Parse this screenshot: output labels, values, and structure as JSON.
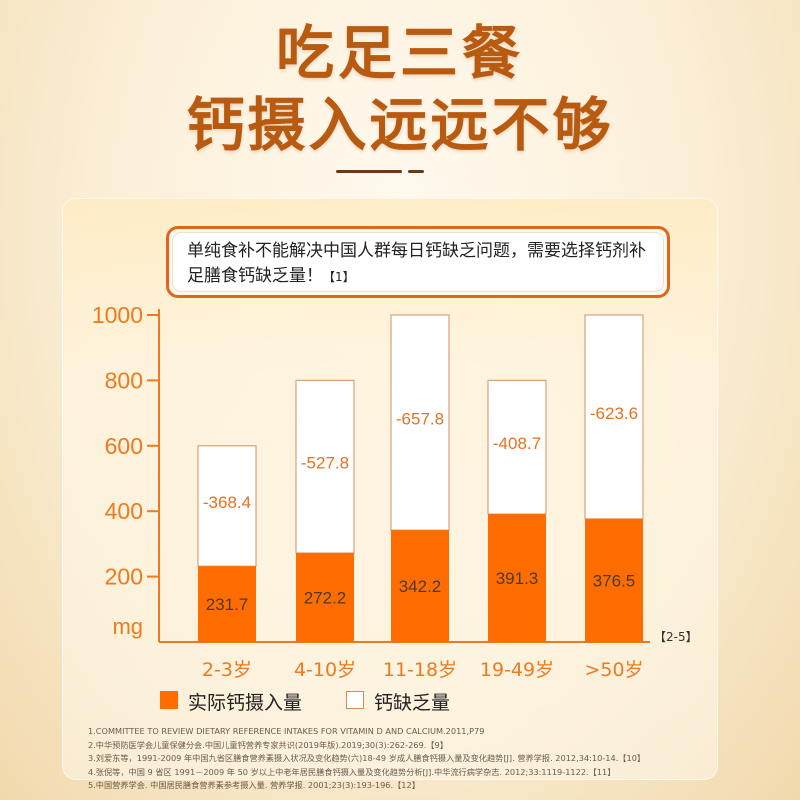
{
  "title": {
    "line1": "吃足三餐",
    "line2": "钙摄入远远不够"
  },
  "note": {
    "text": "单纯食补不能解决中国人群每日钙缺乏问题，需要选择钙剂补足膳食钙缺乏量！",
    "ref": "【1】"
  },
  "chart_data": {
    "type": "bar",
    "stacked": true,
    "categories": [
      "2-3岁",
      "4-10岁",
      "11-18岁",
      "19-49岁",
      ">50岁"
    ],
    "series": [
      {
        "name": "实际钙摄入量",
        "values": [
          231.7,
          272.2,
          342.2,
          391.3,
          376.5
        ],
        "labels": [
          "231.7",
          "272.2",
          "342.2",
          "391.3",
          "376.5"
        ],
        "color": "#ff6d00"
      },
      {
        "name": "钙缺乏量",
        "values": [
          368.4,
          527.8,
          657.8,
          408.7,
          623.6
        ],
        "labels": [
          "-368.4",
          "-527.8",
          "-657.8",
          "-408.7",
          "-623.6"
        ],
        "color": "#ffffff"
      }
    ],
    "ylim": [
      0,
      1000
    ],
    "yticks": [
      "1000",
      "800",
      "600",
      "400",
      "200"
    ],
    "yunit": "mg",
    "x_ref": "【2-5】",
    "axis_color": "#ef7a1e",
    "legend_position": "bottom-left"
  },
  "references": [
    "1.COMMITTEE TO REVIEW DIETARY REFERENCE INTAKES FOR VITAMIN D AND CALCIUM.2011,P79",
    "2.中华预防医学会儿童保健分会.中国儿童钙营养专家共识(2019年版).2019;30(3):262-269.【9】",
    "3.刘爱东等，1991-2009 年中国九省区膳食营养素摄入状况及变化趋势(六)18-49 岁成人膳食钙摄入量及变化趋势[J]. 营养学报. 2012,34:10-14.【10】",
    "4.张倪等，中国 9 省区 1991－2009 年 50 岁以上中老年居民膳食钙摄入量及变化趋势分析[J].中华流行病学杂志.   2012;33:1119-1122.【11】",
    "5.中国营养学会. 中国居民膳食营养素参考摄入量. 营养学报. 2001;23(3):193-196.【12】"
  ]
}
